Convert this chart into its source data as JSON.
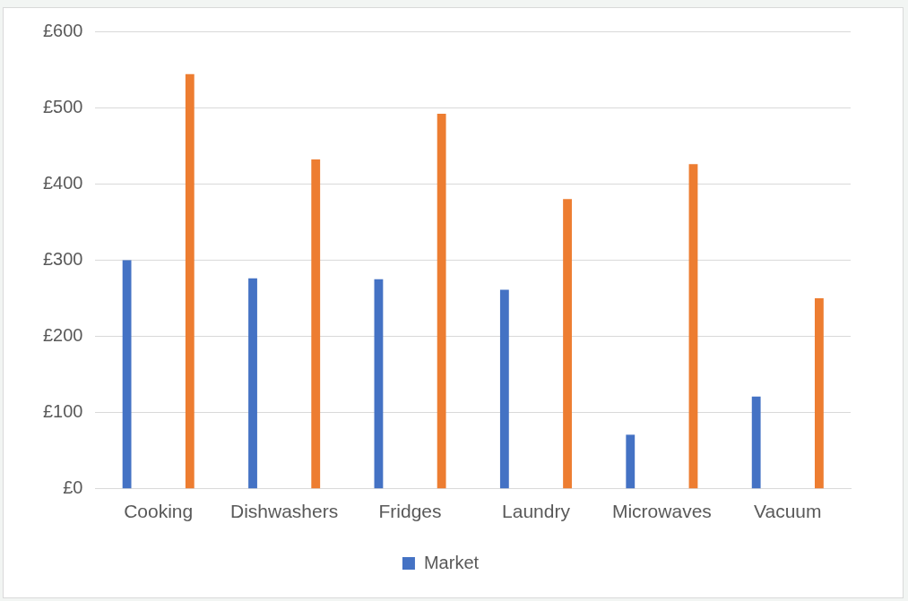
{
  "chart_data": {
    "type": "bar",
    "categories": [
      "Cooking",
      "Dishwashers",
      "Fridges",
      "Laundry",
      "Microwaves",
      "Vacuum"
    ],
    "series": [
      {
        "name": "Market",
        "color": "#4472c4",
        "values": [
          300,
          276,
          275,
          261,
          71,
          121
        ]
      },
      {
        "color": "#ed7d31",
        "values": [
          544,
          432,
          492,
          380,
          426,
          250
        ]
      }
    ],
    "ylim": [
      0,
      600
    ],
    "yticks": [
      {
        "value": 0,
        "label": "£0"
      },
      {
        "value": 100,
        "label": "£100"
      },
      {
        "value": 200,
        "label": "£200"
      },
      {
        "value": 300,
        "label": "£300"
      },
      {
        "value": 400,
        "label": "£400"
      },
      {
        "value": 500,
        "label": "£500"
      },
      {
        "value": 600,
        "label": "£600"
      }
    ],
    "grid": "y",
    "legend": "bottom"
  }
}
